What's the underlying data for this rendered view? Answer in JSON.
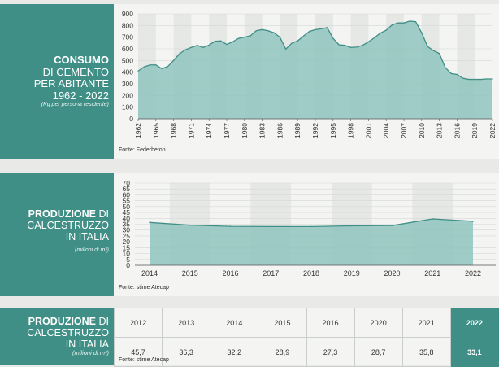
{
  "panel1": {
    "title_bold": "CONSUMO",
    "title_line2": "DI CEMENTO",
    "title_line3": "PER ABITANTE",
    "title_line4": "1962 - 2022",
    "subtitle": "(Kg per persona residente)",
    "source": "Fonte: Federbeton"
  },
  "panel2": {
    "title_bold": "PRODUZIONE",
    "title_rest": " DI",
    "title_line2": "CALCESTRUZZO",
    "title_line3": "IN ITALIA",
    "subtitle": "(milioni di m³)",
    "source": "Fonte: stime Atecap"
  },
  "panel3": {
    "title_bold": "PRODUZIONE",
    "title_rest": " DI",
    "title_line2": "CALCESTRUZZO",
    "title_line3": "IN ITALIA",
    "subtitle": "(milioni di m³)",
    "source": "Fonte: stime Atecap",
    "years": [
      "2012",
      "2013",
      "2014",
      "2015",
      "2016",
      "2020",
      "2021",
      "2022"
    ],
    "values": [
      "45,7",
      "36,3",
      "32,2",
      "28,9",
      "27,3",
      "28,7",
      "35,8",
      "33,1"
    ]
  },
  "colors": {
    "teal": "#3f8f86",
    "area": "#8fc4bd",
    "line": "#3f8f86"
  },
  "chart_data": [
    {
      "type": "area",
      "title": "CONSUMO DI CEMENTO PER ABITANTE 1962 - 2022",
      "ylim": [
        0,
        900
      ],
      "yticks": [
        0,
        100,
        200,
        300,
        400,
        500,
        600,
        700,
        800,
        900
      ],
      "xticks": [
        "1962",
        "1965",
        "1968",
        "1971",
        "1974",
        "1977",
        "1980",
        "1983",
        "1986",
        "1989",
        "1992",
        "1995",
        "1998",
        "2001",
        "2004",
        "2007",
        "2010",
        "2013",
        "2016",
        "2019",
        "2022"
      ],
      "x": [
        1962,
        1963,
        1964,
        1965,
        1966,
        1967,
        1968,
        1969,
        1970,
        1971,
        1972,
        1973,
        1974,
        1975,
        1976,
        1977,
        1978,
        1979,
        1980,
        1981,
        1982,
        1983,
        1984,
        1985,
        1986,
        1987,
        1988,
        1989,
        1990,
        1991,
        1992,
        1993,
        1994,
        1995,
        1996,
        1997,
        1998,
        1999,
        2000,
        2001,
        2002,
        2003,
        2004,
        2005,
        2006,
        2007,
        2008,
        2009,
        2010,
        2011,
        2012,
        2013,
        2014,
        2015,
        2016,
        2017,
        2018,
        2019,
        2020,
        2021,
        2022
      ],
      "values": [
        410,
        445,
        462,
        462,
        430,
        448,
        500,
        558,
        592,
        612,
        630,
        612,
        632,
        665,
        668,
        638,
        660,
        690,
        700,
        712,
        755,
        765,
        755,
        738,
        700,
        598,
        648,
        668,
        710,
        750,
        765,
        772,
        782,
        690,
        635,
        630,
        612,
        615,
        630,
        660,
        695,
        735,
        760,
        805,
        822,
        822,
        838,
        832,
        738,
        620,
        585,
        560,
        440,
        388,
        380,
        348,
        338,
        338,
        338,
        342,
        342
      ]
    },
    {
      "type": "area",
      "title": "PRODUZIONE DI CALCESTRUZZO IN ITALIA",
      "ylim": [
        0,
        70
      ],
      "yticks": [
        0,
        5,
        10,
        15,
        20,
        25,
        30,
        35,
        40,
        45,
        50,
        55,
        60,
        65,
        70
      ],
      "categories": [
        "2014",
        "2015",
        "2016",
        "2017",
        "2018",
        "2019",
        "2020",
        "2021",
        "2022"
      ],
      "values": [
        36.5,
        34.2,
        33.2,
        33,
        33,
        33.6,
        33.9,
        39.5,
        37.5
      ]
    }
  ]
}
